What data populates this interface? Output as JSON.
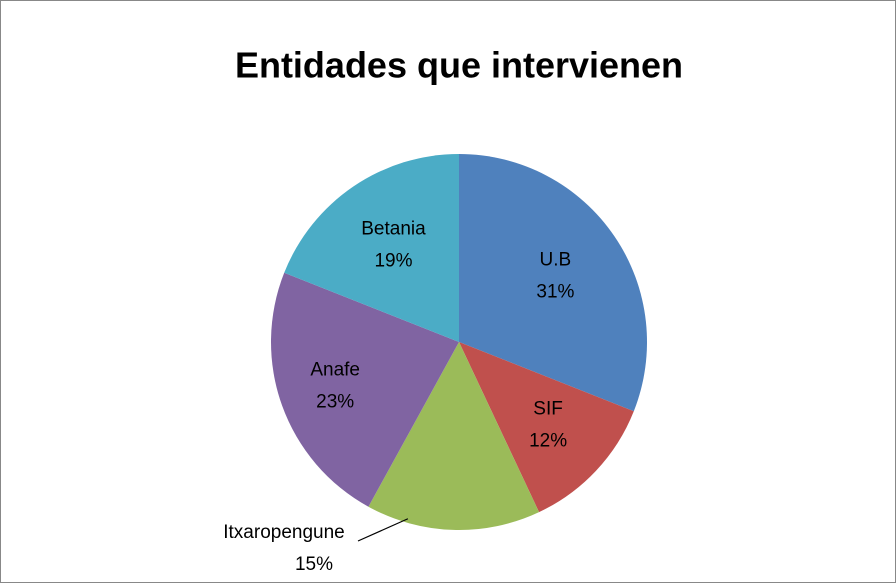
{
  "chart_data": {
    "type": "pie",
    "title": "Entidades que intervienen",
    "categories": [
      "U.B",
      "SIF",
      "Itxaropengune",
      "Anafe",
      "Betania"
    ],
    "values": [
      31,
      12,
      15,
      23,
      19
    ],
    "value_labels": [
      "31%",
      "12%",
      "15%",
      "23%",
      "19%"
    ],
    "colors": [
      "#4f81bd",
      "#c0504d",
      "#9bbb59",
      "#8064a2",
      "#4bacc6"
    ]
  }
}
